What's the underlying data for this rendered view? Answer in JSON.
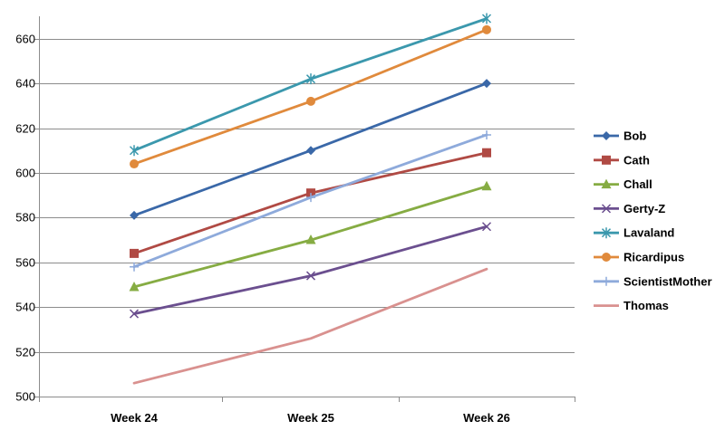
{
  "chart_data": {
    "type": "line",
    "title": "",
    "xlabel": "",
    "ylabel": "",
    "categories": [
      "Week 24",
      "Week 25",
      "Week 26"
    ],
    "ylim": [
      500,
      670
    ],
    "yticks": [
      500,
      520,
      540,
      560,
      580,
      600,
      620,
      640,
      660
    ],
    "grid": true,
    "legend_position": "right",
    "series": [
      {
        "name": "Bob",
        "values": [
          581,
          610,
          640
        ],
        "color": "#3a68a8",
        "marker": "diamond"
      },
      {
        "name": "Cath",
        "values": [
          564,
          591,
          609
        ],
        "color": "#b04a44",
        "marker": "square"
      },
      {
        "name": "Chall",
        "values": [
          549,
          570,
          594
        ],
        "color": "#86ac43",
        "marker": "triangle"
      },
      {
        "name": "Gerty-Z",
        "values": [
          537,
          554,
          576
        ],
        "color": "#6b4f8f",
        "marker": "x"
      },
      {
        "name": "Lavaland",
        "values": [
          610,
          642,
          669
        ],
        "color": "#3b98ad",
        "marker": "asterisk"
      },
      {
        "name": "Ricardipus",
        "values": [
          604,
          632,
          664
        ],
        "color": "#e08a3c",
        "marker": "circle"
      },
      {
        "name": "ScientistMother",
        "values": [
          558,
          589,
          617
        ],
        "color": "#8eaadb",
        "marker": "plus"
      },
      {
        "name": "Thomas",
        "values": [
          506,
          526,
          557
        ],
        "color": "#d9918f",
        "marker": "none"
      }
    ]
  }
}
